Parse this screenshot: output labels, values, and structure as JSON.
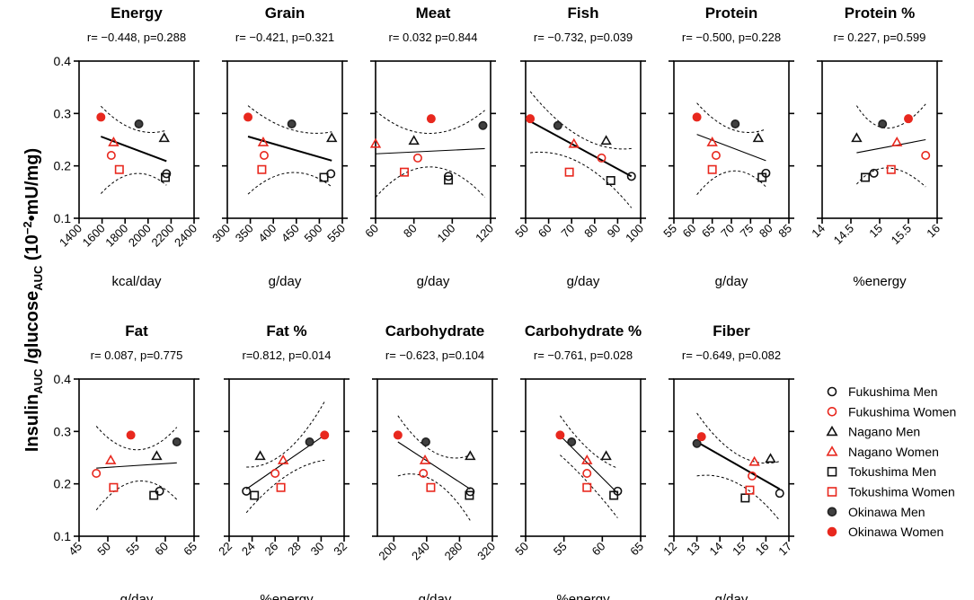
{
  "figure": {
    "ylabel_main": "Insulin",
    "ylabel_sub1": "AUC",
    "ylabel_mid": " /glucose",
    "ylabel_sub2": "AUC",
    "ylabel_unit": " (10",
    "ylabel_exp": "−2",
    "ylabel_tail": "•mU/mg)"
  },
  "legend": [
    {
      "label": "Fukushima Men",
      "marker": "circle",
      "fill": "none",
      "color": "#111111"
    },
    {
      "label": "Fukushima Women",
      "marker": "circle",
      "fill": "none",
      "color": "#e8281e"
    },
    {
      "label": "Nagano Men",
      "marker": "triangle",
      "fill": "none",
      "color": "#111111"
    },
    {
      "label": "Nagano Women",
      "marker": "triangle",
      "fill": "none",
      "color": "#e8281e"
    },
    {
      "label": "Tokushima Men",
      "marker": "square",
      "fill": "none",
      "color": "#111111"
    },
    {
      "label": "Tokushima Women",
      "marker": "square",
      "fill": "none",
      "color": "#e8281e"
    },
    {
      "label": "Okinawa Men",
      "marker": "circle",
      "fill": "#404040",
      "color": "#222222"
    },
    {
      "label": "Okinawa Women",
      "marker": "circle",
      "fill": "#e8281e",
      "color": "#e8281e"
    }
  ],
  "chart_data": [
    {
      "type": "scatter",
      "title": "Energy",
      "stat": "r= −0.448, p=0.288",
      "xlabel": "kcal/day",
      "xlim": [
        1400,
        2400
      ],
      "xticks": [
        1400,
        1600,
        1800,
        2000,
        2200,
        2400
      ],
      "ylim": [
        0.1,
        0.4
      ],
      "yticks": [
        0.1,
        0.2,
        0.3,
        0.4
      ],
      "points": [
        [
          2160,
          0.185
        ],
        [
          1680,
          0.22
        ],
        [
          2140,
          0.253
        ],
        [
          1700,
          0.245
        ],
        [
          2150,
          0.178
        ],
        [
          1750,
          0.193
        ],
        [
          1920,
          0.28
        ],
        [
          1590,
          0.293
        ]
      ],
      "fit": [
        1590,
        0.256,
        2160,
        0.209
      ],
      "band": {
        "upper": [
          [
            1590,
            0.314
          ],
          [
            1875,
            0.27
          ],
          [
            2160,
            0.268
          ]
        ],
        "lower": [
          [
            1590,
            0.147
          ],
          [
            1875,
            0.185
          ],
          [
            2160,
            0.163
          ]
        ]
      },
      "bold": true
    },
    {
      "type": "scatter",
      "title": "Grain",
      "stat": "r= −0.421, p=0.321",
      "xlabel": "g/day",
      "xlim": [
        300,
        550
      ],
      "xticks": [
        300,
        350,
        400,
        450,
        500,
        550
      ],
      "ylim": [
        0.1,
        0.4
      ],
      "yticks": [
        0.1,
        0.2,
        0.3,
        0.4
      ],
      "points": [
        [
          525,
          0.185
        ],
        [
          380,
          0.22
        ],
        [
          527,
          0.253
        ],
        [
          378,
          0.245
        ],
        [
          510,
          0.178
        ],
        [
          375,
          0.193
        ],
        [
          440,
          0.28
        ],
        [
          345,
          0.293
        ]
      ],
      "fit": [
        345,
        0.256,
        527,
        0.21
      ],
      "band": {
        "upper": [
          [
            345,
            0.315
          ],
          [
            436,
            0.27
          ],
          [
            527,
            0.265
          ]
        ],
        "lower": [
          [
            345,
            0.146
          ],
          [
            436,
            0.187
          ],
          [
            527,
            0.16
          ]
        ]
      },
      "bold": true
    },
    {
      "type": "scatter",
      "title": "Meat",
      "stat": "r= 0.032 p=0.844",
      "xlabel": "g/day",
      "xlim": [
        60,
        120
      ],
      "xticks": [
        60,
        80,
        100,
        120
      ],
      "ylim": [
        0.1,
        0.4
      ],
      "yticks": [
        0.1,
        0.2,
        0.3,
        0.4
      ],
      "points": [
        [
          98,
          0.18
        ],
        [
          82,
          0.215
        ],
        [
          80,
          0.248
        ],
        [
          60,
          0.242
        ],
        [
          98,
          0.173
        ],
        [
          75,
          0.188
        ],
        [
          116,
          0.277
        ],
        [
          89,
          0.29
        ]
      ],
      "fit": [
        60,
        0.223,
        117,
        0.233
      ],
      "band": {
        "upper": [
          [
            60,
            0.305
          ],
          [
            88,
            0.262
          ],
          [
            117,
            0.306
          ]
        ],
        "lower": [
          [
            60,
            0.14
          ],
          [
            88,
            0.198
          ],
          [
            117,
            0.14
          ]
        ]
      },
      "bold": false
    },
    {
      "type": "scatter",
      "title": "Fish",
      "stat": "r= −0.732, p=0.039",
      "xlabel": "g/day",
      "xlim": [
        50,
        100
      ],
      "xticks": [
        50,
        60,
        70,
        80,
        90,
        100
      ],
      "ylim": [
        0.1,
        0.4
      ],
      "yticks": [
        0.1,
        0.2,
        0.3,
        0.4
      ],
      "points": [
        [
          96,
          0.18
        ],
        [
          83,
          0.215
        ],
        [
          85,
          0.248
        ],
        [
          71,
          0.242
        ],
        [
          87,
          0.172
        ],
        [
          69,
          0.188
        ],
        [
          64,
          0.277
        ],
        [
          52,
          0.29
        ]
      ],
      "fit": [
        52,
        0.285,
        96,
        0.18
      ],
      "band": {
        "upper": [
          [
            52,
            0.342
          ],
          [
            74,
            0.255
          ],
          [
            96,
            0.233
          ]
        ],
        "lower": [
          [
            52,
            0.225
          ],
          [
            74,
            0.205
          ],
          [
            96,
            0.12
          ]
        ]
      },
      "bold": true
    },
    {
      "type": "scatter",
      "title": "Protein",
      "stat": "r= −0.500, p=0.228",
      "xlabel": "g/day",
      "xlim": [
        55,
        85
      ],
      "xticks": [
        55,
        60,
        65,
        70,
        75,
        80,
        85
      ],
      "ylim": [
        0.1,
        0.4
      ],
      "yticks": [
        0.1,
        0.2,
        0.3,
        0.4
      ],
      "points": [
        [
          79,
          0.186
        ],
        [
          66,
          0.22
        ],
        [
          77,
          0.253
        ],
        [
          65,
          0.245
        ],
        [
          78,
          0.178
        ],
        [
          65,
          0.193
        ],
        [
          71,
          0.28
        ],
        [
          61,
          0.293
        ]
      ],
      "fit": [
        61,
        0.26,
        79,
        0.21
      ],
      "band": {
        "upper": [
          [
            61,
            0.32
          ],
          [
            70,
            0.27
          ],
          [
            79,
            0.27
          ]
        ],
        "lower": [
          [
            61,
            0.145
          ],
          [
            70,
            0.19
          ],
          [
            79,
            0.16
          ]
        ]
      },
      "bold": false
    },
    {
      "type": "scatter",
      "title": "Protein %",
      "stat": "r= 0.227, p=0.599",
      "xlabel": "%energy",
      "xlim": [
        14,
        16
      ],
      "xticks": [
        14,
        14.5,
        15,
        15.5,
        16
      ],
      "ylim": [
        0.1,
        0.4
      ],
      "yticks": [
        0.1,
        0.2,
        0.3,
        0.4
      ],
      "points": [
        [
          14.9,
          0.186
        ],
        [
          15.8,
          0.22
        ],
        [
          14.6,
          0.253
        ],
        [
          15.3,
          0.245
        ],
        [
          14.75,
          0.178
        ],
        [
          15.2,
          0.193
        ],
        [
          15.05,
          0.28
        ],
        [
          15.5,
          0.29
        ]
      ],
      "fit": [
        14.6,
        0.225,
        15.8,
        0.25
      ],
      "band": {
        "upper": [
          [
            14.6,
            0.315
          ],
          [
            15.1,
            0.272
          ],
          [
            15.8,
            0.318
          ]
        ],
        "lower": [
          [
            14.6,
            0.165
          ],
          [
            15.1,
            0.196
          ],
          [
            15.8,
            0.16
          ]
        ]
      },
      "bold": false
    },
    {
      "type": "scatter",
      "title": "Fat",
      "stat": "r= 0.087, p=0.775",
      "xlabel": "g/day",
      "xlim": [
        45,
        65
      ],
      "xticks": [
        45,
        50,
        55,
        60,
        65
      ],
      "ylim": [
        0.1,
        0.4
      ],
      "yticks": [
        0.1,
        0.2,
        0.3,
        0.4
      ],
      "points": [
        [
          59,
          0.186
        ],
        [
          48,
          0.22
        ],
        [
          58.5,
          0.253
        ],
        [
          50.5,
          0.245
        ],
        [
          58,
          0.178
        ],
        [
          51,
          0.193
        ],
        [
          62,
          0.28
        ],
        [
          54,
          0.293
        ]
      ],
      "fit": [
        48,
        0.23,
        62,
        0.24
      ],
      "band": {
        "upper": [
          [
            48,
            0.31
          ],
          [
            55,
            0.265
          ],
          [
            62,
            0.308
          ]
        ],
        "lower": [
          [
            48,
            0.15
          ],
          [
            55,
            0.205
          ],
          [
            62,
            0.17
          ]
        ]
      },
      "bold": false
    },
    {
      "type": "scatter",
      "title": "Fat %",
      "stat": "r=0.812, p=0.014",
      "xlabel": "%energy",
      "xlim": [
        22,
        32
      ],
      "xticks": [
        22,
        24,
        26,
        28,
        30,
        32
      ],
      "ylim": [
        0.1,
        0.4
      ],
      "yticks": [
        0.1,
        0.2,
        0.3,
        0.4
      ],
      "points": [
        [
          23.5,
          0.186
        ],
        [
          26,
          0.22
        ],
        [
          24.7,
          0.253
        ],
        [
          26.7,
          0.245
        ],
        [
          24.2,
          0.178
        ],
        [
          26.5,
          0.193
        ],
        [
          29,
          0.28
        ],
        [
          30.3,
          0.293
        ]
      ],
      "fit": [
        23.5,
        0.19,
        30.3,
        0.293
      ],
      "band": {
        "upper": [
          [
            23.5,
            0.232
          ],
          [
            27,
            0.262
          ],
          [
            30.3,
            0.357
          ]
        ],
        "lower": [
          [
            23.5,
            0.145
          ],
          [
            27,
            0.215
          ],
          [
            30.3,
            0.245
          ]
        ]
      },
      "bold": false
    },
    {
      "type": "scatter",
      "title": "Carbohydrate",
      "stat": "r= −0.623, p=0.104",
      "xlabel": "g/day",
      "xlim": [
        180,
        320
      ],
      "xticks": [
        200,
        240,
        280,
        320
      ],
      "ylim": [
        0.1,
        0.4
      ],
      "yticks": [
        0.1,
        0.2,
        0.3,
        0.4
      ],
      "points": [
        [
          293,
          0.185
        ],
        [
          236,
          0.22
        ],
        [
          293,
          0.253
        ],
        [
          238,
          0.245
        ],
        [
          292,
          0.178
        ],
        [
          245,
          0.193
        ],
        [
          239,
          0.28
        ],
        [
          205,
          0.293
        ]
      ],
      "fit": [
        205,
        0.28,
        293,
        0.19
      ],
      "band": {
        "upper": [
          [
            205,
            0.33
          ],
          [
            250,
            0.26
          ],
          [
            293,
            0.255
          ]
        ],
        "lower": [
          [
            205,
            0.215
          ],
          [
            250,
            0.205
          ],
          [
            293,
            0.13
          ]
        ]
      },
      "bold": false
    },
    {
      "type": "scatter",
      "title": "Carbohydrate %",
      "stat": "r= −0.761, p=0.028",
      "xlabel": "%energy",
      "xlim": [
        50,
        65
      ],
      "xticks": [
        50,
        55,
        60,
        65
      ],
      "ylim": [
        0.1,
        0.4
      ],
      "yticks": [
        0.1,
        0.2,
        0.3,
        0.4
      ],
      "points": [
        [
          62,
          0.186
        ],
        [
          58,
          0.22
        ],
        [
          60.5,
          0.253
        ],
        [
          58,
          0.245
        ],
        [
          61.5,
          0.178
        ],
        [
          58,
          0.193
        ],
        [
          56,
          0.28
        ],
        [
          54.5,
          0.293
        ]
      ],
      "fit": [
        54.5,
        0.292,
        62,
        0.182
      ],
      "band": {
        "upper": [
          [
            54.5,
            0.33
          ],
          [
            58.3,
            0.265
          ],
          [
            62,
            0.23
          ]
        ],
        "lower": [
          [
            54.5,
            0.255
          ],
          [
            58.3,
            0.2
          ],
          [
            62,
            0.135
          ]
        ]
      },
      "bold": false
    },
    {
      "type": "scatter",
      "title": "Fiber",
      "stat": "r= −0.649, p=0.082",
      "xlabel": "g/day",
      "xlim": [
        12,
        17
      ],
      "xticks": [
        12,
        13,
        14,
        15,
        16,
        17
      ],
      "ylim": [
        0.1,
        0.4
      ],
      "yticks": [
        0.1,
        0.2,
        0.3,
        0.4
      ],
      "points": [
        [
          16.6,
          0.182
        ],
        [
          15.4,
          0.215
        ],
        [
          16.2,
          0.248
        ],
        [
          15.5,
          0.242
        ],
        [
          15.1,
          0.173
        ],
        [
          15.3,
          0.188
        ],
        [
          13,
          0.277
        ],
        [
          13.2,
          0.29
        ]
      ],
      "fit": [
        13,
        0.28,
        16.6,
        0.19
      ],
      "band": {
        "upper": [
          [
            13,
            0.335
          ],
          [
            14.8,
            0.255
          ],
          [
            16.6,
            0.243
          ]
        ],
        "lower": [
          [
            13,
            0.215
          ],
          [
            14.8,
            0.2
          ],
          [
            16.6,
            0.13
          ]
        ]
      },
      "bold": true
    }
  ]
}
